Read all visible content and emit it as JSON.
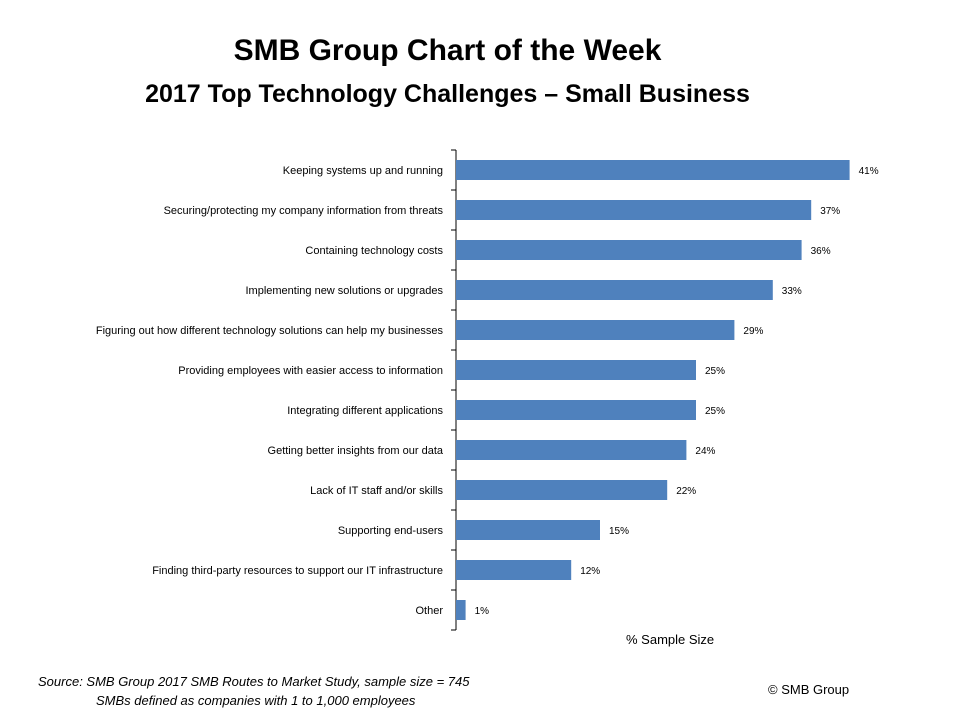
{
  "title": "SMB Group Chart of the Week",
  "subtitle": "2017 Top Technology Challenges – Small Business",
  "footnote": {
    "line1": "Source: SMB Group 2017 SMB Routes to Market Study, sample size = 745",
    "line2": "SMBs defined as companies with 1 to 1,000 employees"
  },
  "copyright": "© SMB Group",
  "colors": {
    "bar": "#4f81bd",
    "axis": "#000000"
  },
  "chart_data": {
    "type": "bar",
    "orientation": "horizontal",
    "categories": [
      "Keeping systems up and running",
      "Securing/protecting my company information from threats",
      "Containing technology costs",
      "Implementing new solutions or upgrades",
      "Figuring out how different technology solutions can help my businesses",
      "Providing employees with easier access to information",
      "Integrating different applications",
      "Getting better insights from our data",
      "Lack of IT staff and/or skills",
      "Supporting end-users",
      "Finding third-party resources to support our IT infrastructure",
      "Other"
    ],
    "values": [
      41,
      37,
      36,
      33,
      29,
      25,
      25,
      24,
      22,
      15,
      12,
      1
    ],
    "data_labels": [
      "41%",
      "37%",
      "36%",
      "33%",
      "29%",
      "25%",
      "25%",
      "24%",
      "22%",
      "15%",
      "12%",
      "1%"
    ],
    "xlabel": "% Sample Size",
    "grid": false,
    "legend": "none"
  }
}
